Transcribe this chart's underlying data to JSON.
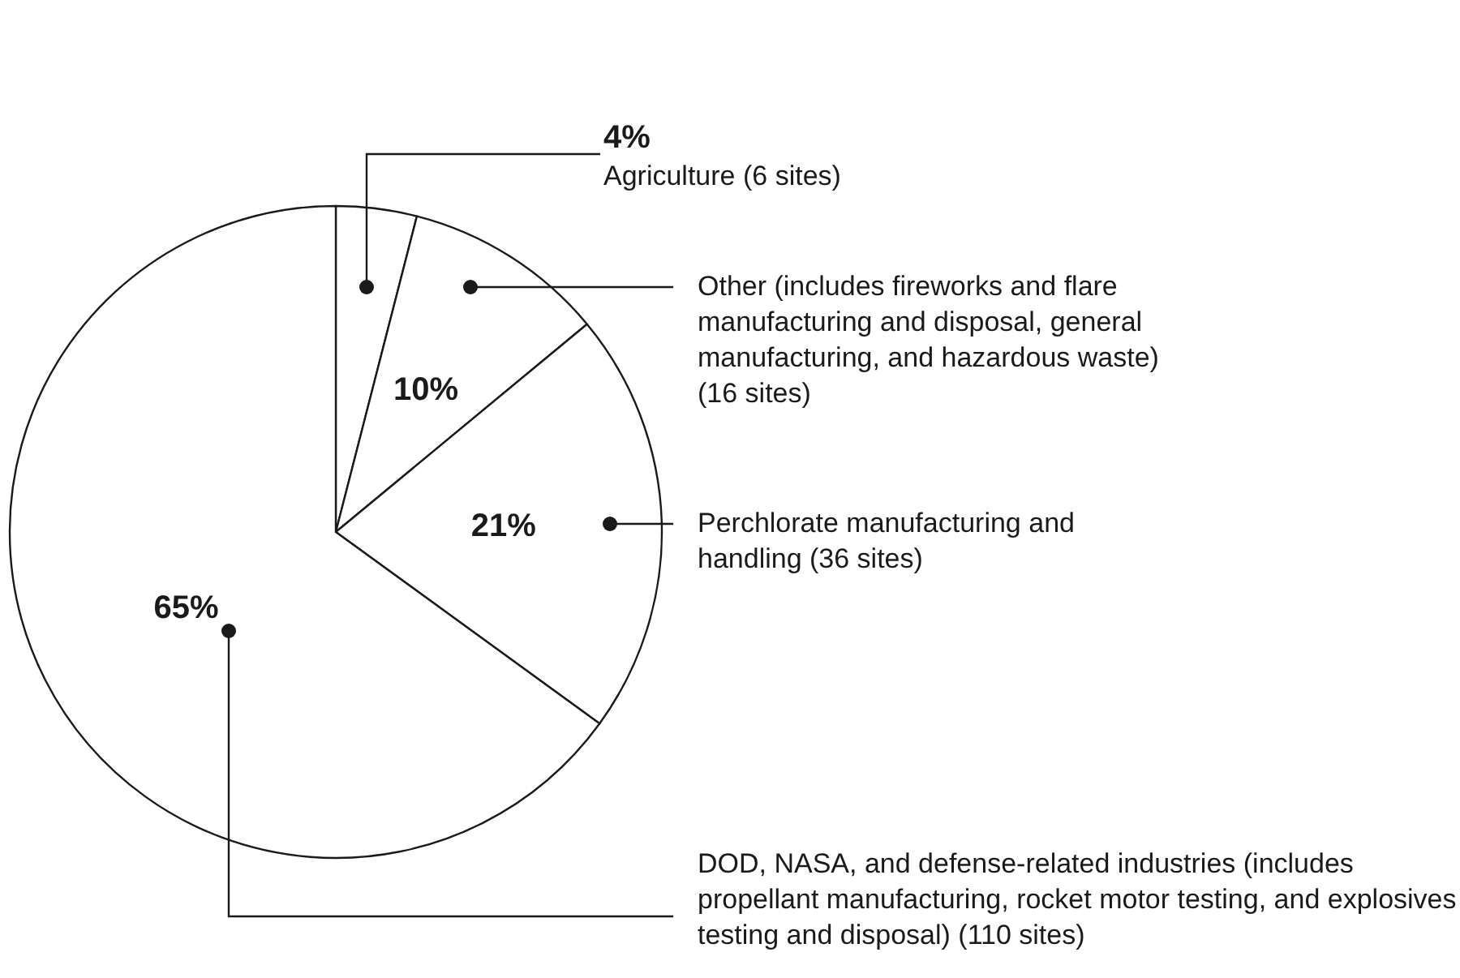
{
  "chart_data": {
    "type": "pie",
    "categories": [
      "Agriculture (6 sites)",
      "Other (includes fireworks and flare manufacturing and disposal, general manufacturing, and hazardous waste) (16 sites)",
      "Perchlorate manufacturing and handling (36 sites)",
      "DOD, NASA, and defense-related industries (includes propellant manufacturing, rocket motor testing, and explosives testing and disposal) (110 sites)"
    ],
    "values": [
      4,
      10,
      21,
      65
    ],
    "colors": [
      "#ffffff",
      "#ffffff",
      "#ffffff",
      "#ffffff"
    ],
    "value_labels": [
      "4%",
      "10%",
      "21%",
      "65%"
    ]
  }
}
